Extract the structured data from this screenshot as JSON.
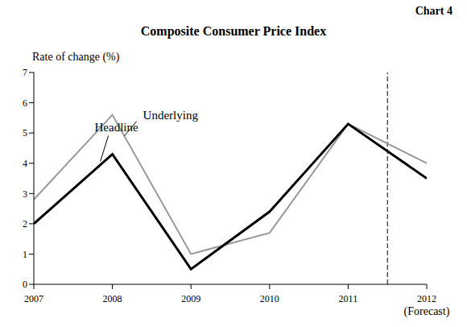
{
  "chart_data": {
    "type": "line",
    "title": "Composite Consumer Price Index",
    "subtitle": "Chart 4",
    "y_label": "Rate of change (%)",
    "x": [
      2007,
      2008,
      2009,
      2010,
      2011,
      2012
    ],
    "series": [
      {
        "name": "Underlying",
        "color": "#999999",
        "values": [
          2.8,
          5.6,
          1.0,
          1.7,
          5.3,
          4.0
        ]
      },
      {
        "name": "Headline",
        "color": "#000000",
        "values": [
          2.0,
          4.3,
          0.5,
          2.4,
          5.3,
          3.5
        ]
      }
    ],
    "xlim": [
      2007,
      2012
    ],
    "xticks": [
      2007,
      2008,
      2009,
      2010,
      2011,
      2012
    ],
    "ylim": [
      0,
      7
    ],
    "yticks": [
      0,
      1,
      2,
      3,
      4,
      5,
      6,
      7
    ],
    "grid": false,
    "forecast_start": 2011.5,
    "annotations": [
      {
        "text": "(Forecast)",
        "x": 2012
      }
    ]
  }
}
